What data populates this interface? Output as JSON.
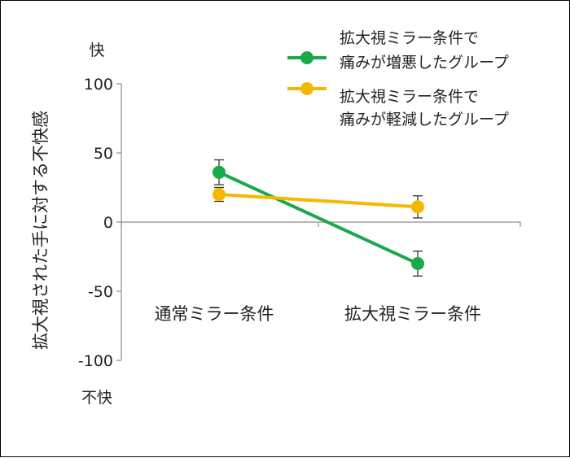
{
  "chart_data": {
    "type": "line",
    "categories": [
      "通常ミラー条件",
      "拡大視ミラー条件"
    ],
    "ylabel": "拡大視された手に対する不快感",
    "ylim": [
      -100,
      100
    ],
    "yticks": [
      100,
      50,
      0,
      -50,
      -100
    ],
    "top_label": "快",
    "bottom_label": "不快",
    "legend_position": "top-right",
    "series": [
      {
        "name": "拡大視ミラー条件で\n痛みが増悪したグループ",
        "name_lines": [
          "拡大視ミラー条件で",
          "痛みが増悪したグループ"
        ],
        "color": "#1aa84a",
        "values": [
          36,
          -30
        ],
        "error": [
          9,
          9
        ]
      },
      {
        "name": "拡大視ミラー条件で\n痛みが軽減したグループ",
        "name_lines": [
          "拡大視ミラー条件で",
          "痛みが軽減したグループ"
        ],
        "color": "#f5b800",
        "values": [
          20,
          11
        ],
        "error": [
          5,
          8
        ]
      }
    ]
  }
}
